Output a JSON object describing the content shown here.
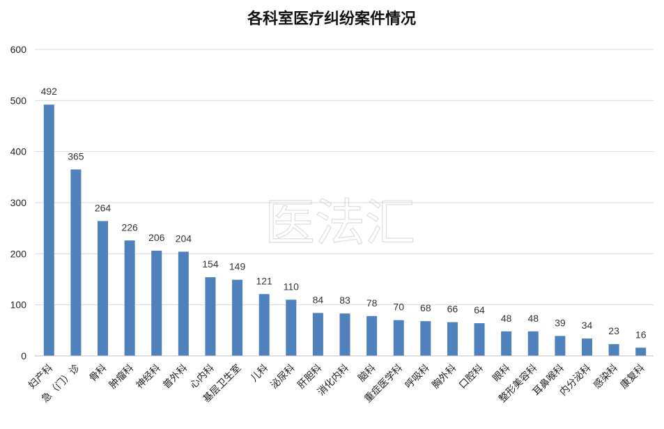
{
  "chart_data": {
    "type": "bar",
    "title": "各科室医疗纠纷案件情况",
    "categories": [
      "妇产科",
      "急（门）诊",
      "骨科",
      "肿瘤科",
      "神经科",
      "普外科",
      "心内科",
      "基层卫生室",
      "儿科",
      "泌尿科",
      "肝胆科",
      "消化内科",
      "脑科",
      "重症医学科",
      "呼吸科",
      "胸外科",
      "口腔科",
      "眼科",
      "整形美容科",
      "耳鼻喉科",
      "内分泌科",
      "感染科",
      "康复科"
    ],
    "values": [
      492,
      365,
      264,
      226,
      206,
      204,
      154,
      149,
      121,
      110,
      84,
      83,
      78,
      70,
      68,
      66,
      64,
      48,
      48,
      39,
      34,
      23,
      16
    ],
    "ylim": [
      0,
      600
    ],
    "yticks": [
      0,
      100,
      200,
      300,
      400,
      500,
      600
    ],
    "grid": true,
    "bar_color": "#4f81bd",
    "watermark": "医法汇"
  }
}
